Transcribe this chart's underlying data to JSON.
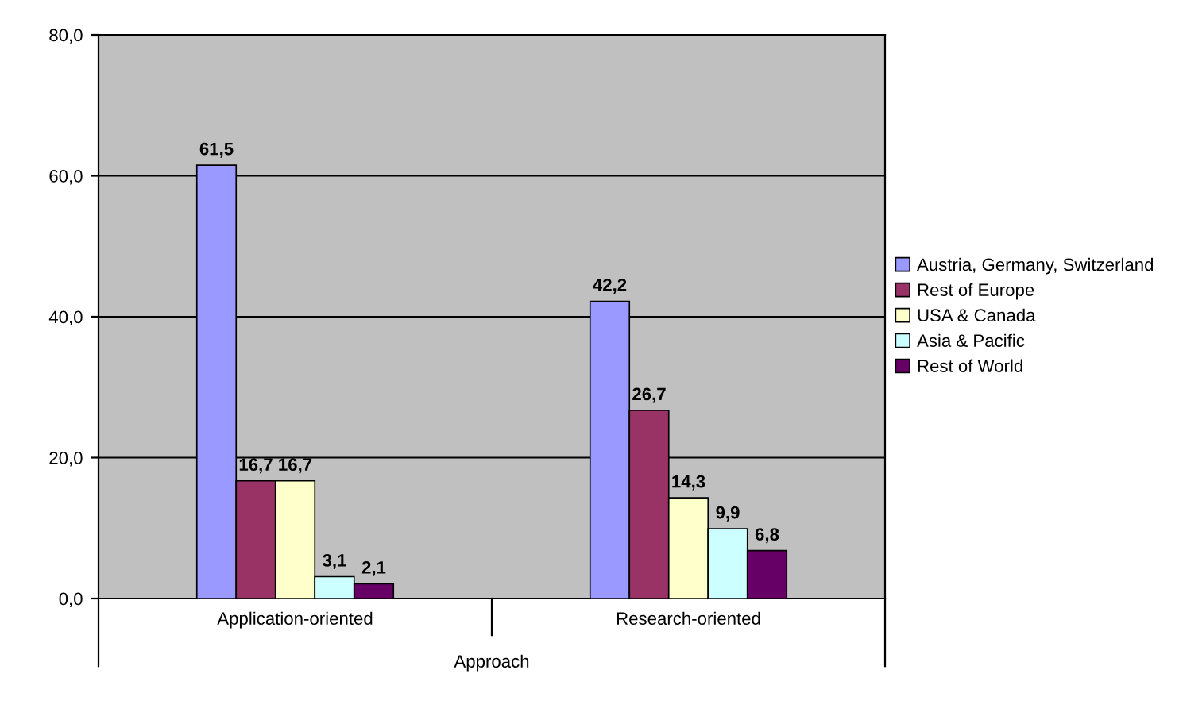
{
  "chart_data": {
    "type": "bar",
    "xlabel": "Approach",
    "categories": [
      "Application-oriented",
      "Research-oriented"
    ],
    "series": [
      {
        "name": "Austria, Germany, Switzerland",
        "color": "#9999ff",
        "values": [
          61.5,
          42.2
        ],
        "value_labels": [
          "61,5",
          "42,2"
        ]
      },
      {
        "name": "Rest of Europe",
        "color": "#993366",
        "values": [
          16.7,
          26.7
        ],
        "value_labels": [
          "16,7",
          "26,7"
        ]
      },
      {
        "name": "USA & Canada",
        "color": "#ffffcc",
        "values": [
          16.7,
          14.3
        ],
        "value_labels": [
          "16,7",
          "14,3"
        ]
      },
      {
        "name": "Asia & Pacific",
        "color": "#ccffff",
        "values": [
          3.1,
          9.9
        ],
        "value_labels": [
          "3,1",
          "9,9"
        ]
      },
      {
        "name": "Rest of World",
        "color": "#660066",
        "values": [
          2.1,
          6.8
        ],
        "value_labels": [
          "2,1",
          "6,8"
        ]
      }
    ],
    "ylim": [
      0,
      80
    ],
    "yticks": [
      {
        "value": 0,
        "label": "0,0"
      },
      {
        "value": 20,
        "label": "20,0"
      },
      {
        "value": 40,
        "label": "40,0"
      },
      {
        "value": 60,
        "label": "60,0"
      },
      {
        "value": 80,
        "label": "80,0"
      }
    ],
    "grid": "y",
    "legend": "right"
  }
}
